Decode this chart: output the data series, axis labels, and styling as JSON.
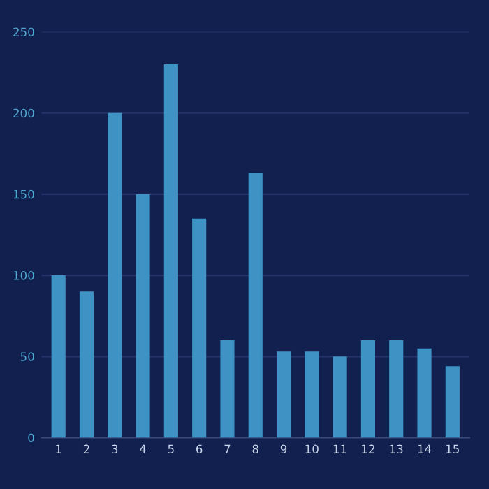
{
  "chart_data": {
    "type": "bar",
    "categories": [
      "1",
      "2",
      "3",
      "4",
      "5",
      "6",
      "7",
      "8",
      "9",
      "10",
      "11",
      "12",
      "13",
      "14",
      "15"
    ],
    "values": [
      100,
      90,
      200,
      150,
      230,
      135,
      60,
      163,
      53,
      53,
      50,
      60,
      60,
      55,
      44
    ],
    "color": "#3f93c4",
    "ylim": [
      0,
      250
    ],
    "yticks": [
      0,
      50,
      100,
      150,
      200,
      250
    ],
    "grid": "y"
  }
}
